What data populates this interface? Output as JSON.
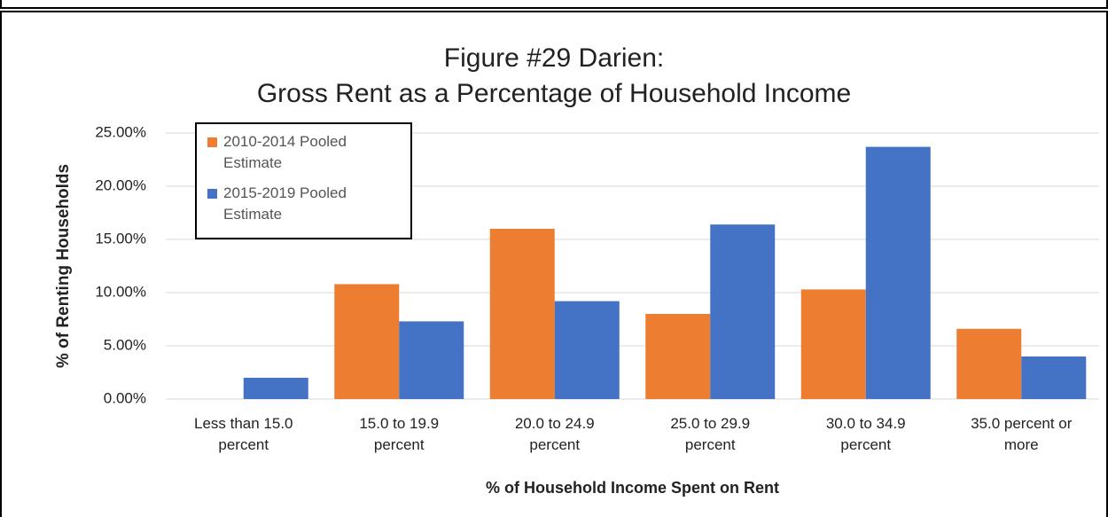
{
  "chart_data": {
    "type": "bar",
    "title": "Figure #29  Darien:\nGross Rent as a Percentage of Household Income",
    "x_label": "% of Household Income Spent on Rent",
    "y_label": "% of Renting Households",
    "categories": [
      "Less than 15.0 percent",
      "15.0 to 19.9 percent",
      "20.0 to 24.9 percent",
      "25.0 to 29.9 percent",
      "30.0 to 34.9 percent",
      "35.0 percent or more"
    ],
    "series": [
      {
        "name": "2010-2014 Pooled Estimate",
        "color": "#ed7d31",
        "values": [
          0,
          10.8,
          16.0,
          8.0,
          10.3,
          6.6
        ]
      },
      {
        "name": "2015-2019 Pooled Estimate",
        "color": "#4472c4",
        "values": [
          2.0,
          7.3,
          9.2,
          16.4,
          23.7,
          4.0
        ]
      }
    ],
    "ylim": [
      0,
      25
    ],
    "yticks": [
      {
        "value": 0,
        "label": "0.00%"
      },
      {
        "value": 5,
        "label": "5.00%"
      },
      {
        "value": 10,
        "label": "10.00%"
      },
      {
        "value": 15,
        "label": "15.00%"
      },
      {
        "value": 20,
        "label": "20.00%"
      },
      {
        "value": 25,
        "label": "25.00%"
      }
    ],
    "grid": true,
    "legend": "upper left"
  }
}
